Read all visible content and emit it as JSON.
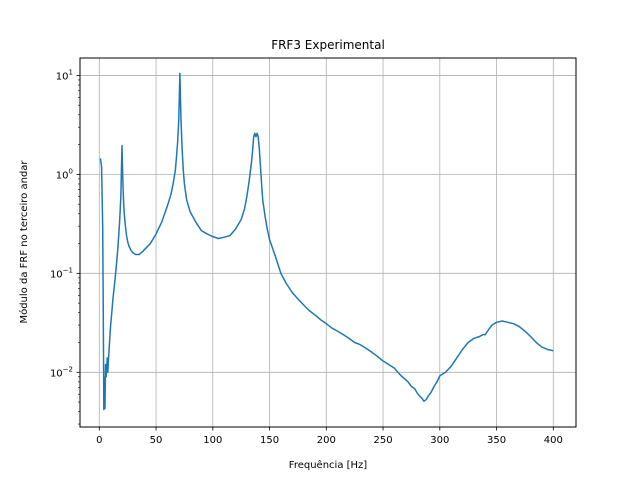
{
  "chart_data": {
    "type": "line",
    "title": "FRF3 Experimental",
    "xlabel": "Frequência [Hz]",
    "ylabel": "Módulo da FRF no terceiro andar",
    "xlim": [
      -17,
      420
    ],
    "ylim": [
      0.0028,
      15
    ],
    "yscale": "log",
    "grid": true,
    "x_ticks": [
      0,
      50,
      100,
      150,
      200,
      250,
      300,
      350,
      400
    ],
    "x_tick_labels": [
      "0",
      "50",
      "100",
      "150",
      "200",
      "250",
      "300",
      "350",
      "400"
    ],
    "y_ticks": [
      0.01,
      0.1,
      1,
      10
    ],
    "y_tick_labels": [
      {
        "base": "10",
        "exp": "−2"
      },
      {
        "base": "10",
        "exp": "−1"
      },
      {
        "base": "10",
        "exp": "0"
      },
      {
        "base": "10",
        "exp": "1"
      }
    ],
    "series": [
      {
        "color": "#1f77b4",
        "x": [
          1,
          2,
          3,
          3.5,
          4,
          4.5,
          5,
          5.5,
          6,
          6.5,
          7,
          7.5,
          8,
          8.5,
          9,
          10,
          11,
          12,
          13,
          14,
          15,
          16,
          17,
          18,
          19,
          19.5,
          20,
          20.5,
          21,
          21.5,
          22,
          23,
          24,
          25,
          26,
          28,
          30,
          32,
          35,
          38,
          40,
          45,
          50,
          55,
          60,
          63,
          65,
          67,
          68,
          69,
          70,
          70.5,
          71,
          71.5,
          72,
          73,
          74,
          75,
          77,
          80,
          85,
          90,
          95,
          100,
          105,
          110,
          115,
          120,
          125,
          128,
          130,
          132,
          134,
          135,
          136,
          137,
          138,
          139,
          140,
          141,
          142,
          143,
          144,
          146,
          148,
          150,
          155,
          160,
          165,
          170,
          175,
          180,
          185,
          190,
          195,
          200,
          205,
          210,
          215,
          220,
          225,
          230,
          235,
          240,
          245,
          250,
          255,
          260,
          263,
          266,
          269,
          272,
          275,
          278,
          280,
          282,
          284,
          286,
          288,
          290,
          292,
          295,
          298,
          300,
          305,
          310,
          315,
          320,
          325,
          330,
          335,
          338,
          340,
          343,
          346,
          350,
          355,
          360,
          365,
          370,
          375,
          380,
          385,
          390,
          395,
          400
        ],
        "y": [
          1.45,
          1.2,
          0.3,
          0.04,
          0.0042,
          0.009,
          0.0043,
          0.012,
          0.009,
          0.011,
          0.014,
          0.01,
          0.013,
          0.016,
          0.02,
          0.03,
          0.04,
          0.055,
          0.07,
          0.09,
          0.12,
          0.16,
          0.23,
          0.35,
          0.6,
          1.1,
          1.95,
          1.1,
          0.7,
          0.5,
          0.4,
          0.3,
          0.24,
          0.21,
          0.19,
          0.17,
          0.16,
          0.155,
          0.155,
          0.165,
          0.175,
          0.2,
          0.25,
          0.33,
          0.48,
          0.62,
          0.8,
          1.1,
          1.5,
          2.1,
          3.5,
          6,
          10.5,
          6,
          3.5,
          1.8,
          1.1,
          0.8,
          0.55,
          0.42,
          0.33,
          0.27,
          0.25,
          0.235,
          0.225,
          0.232,
          0.24,
          0.28,
          0.35,
          0.45,
          0.6,
          0.85,
          1.3,
          1.7,
          2.4,
          2.6,
          2.4,
          2.6,
          2.4,
          1.8,
          1.2,
          0.8,
          0.55,
          0.38,
          0.28,
          0.22,
          0.15,
          0.1,
          0.078,
          0.064,
          0.055,
          0.048,
          0.042,
          0.038,
          0.034,
          0.031,
          0.028,
          0.026,
          0.024,
          0.022,
          0.02,
          0.019,
          0.0175,
          0.016,
          0.0145,
          0.013,
          0.012,
          0.011,
          0.01,
          0.0092,
          0.0086,
          0.008,
          0.0072,
          0.0068,
          0.0062,
          0.0058,
          0.0055,
          0.0051,
          0.0053,
          0.0058,
          0.0062,
          0.0072,
          0.0082,
          0.0092,
          0.01,
          0.0115,
          0.014,
          0.017,
          0.02,
          0.022,
          0.023,
          0.024,
          0.024,
          0.027,
          0.03,
          0.032,
          0.033,
          0.032,
          0.031,
          0.029,
          0.026,
          0.023,
          0.02,
          0.018,
          0.017,
          0.0165
        ]
      }
    ]
  }
}
